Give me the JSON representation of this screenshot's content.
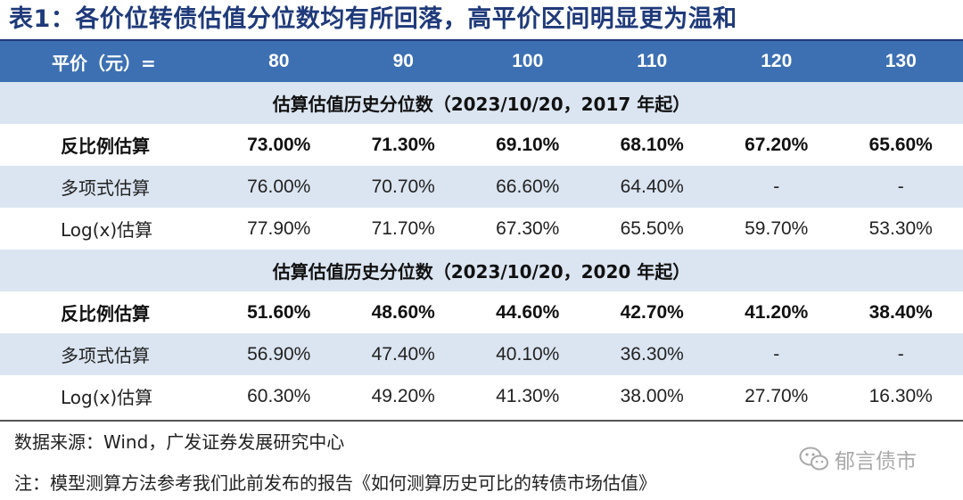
{
  "title": "表1：各价位转债估值分位数均有所回落，高平价区间明显更为温和",
  "header": {
    "label": "平价（元）=",
    "columns": [
      "80",
      "90",
      "100",
      "110",
      "120",
      "130"
    ]
  },
  "sections": [
    {
      "heading": "估算估值历史分位数（2023/10/20，2017 年起）",
      "rows": [
        {
          "label": "反比例估算",
          "values": [
            "73.00%",
            "71.30%",
            "69.10%",
            "68.10%",
            "67.20%",
            "65.60%"
          ]
        },
        {
          "label": "多项式估算",
          "values": [
            "76.00%",
            "70.70%",
            "66.60%",
            "64.40%",
            "-",
            "-"
          ]
        },
        {
          "label": "Log(x)估算",
          "values": [
            "77.90%",
            "71.70%",
            "67.30%",
            "65.50%",
            "59.70%",
            "53.30%"
          ]
        }
      ]
    },
    {
      "heading": "估算估值历史分位数（2023/10/20，2020 年起）",
      "rows": [
        {
          "label": "反比例估算",
          "values": [
            "51.60%",
            "48.60%",
            "44.60%",
            "42.70%",
            "41.20%",
            "38.40%"
          ]
        },
        {
          "label": "多项式估算",
          "values": [
            "56.90%",
            "47.40%",
            "40.10%",
            "36.30%",
            "-",
            "-"
          ]
        },
        {
          "label": "Log(x)估算",
          "values": [
            "60.30%",
            "49.20%",
            "41.30%",
            "38.00%",
            "27.70%",
            "16.30%"
          ]
        }
      ]
    }
  ],
  "source": "数据来源：Wind，广发证券发展研究中心",
  "note": "注：模型测算方法参考我们此前发布的报告《如何测算历史可比的转债市场估值》",
  "watermark": "郁言债市",
  "colors": {
    "header_bg": "#3d70b2",
    "band_bg": "#dbe5f1",
    "title": "#1f3a7a"
  }
}
